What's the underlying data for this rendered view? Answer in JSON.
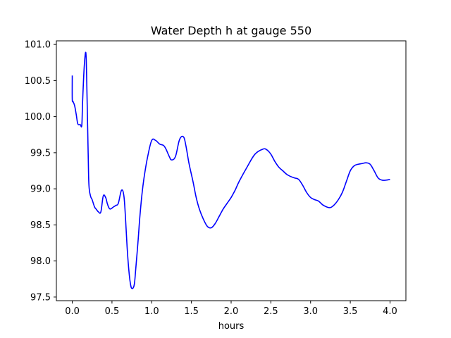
{
  "chart_data": {
    "type": "line",
    "title": "Water Depth h at gauge 550",
    "xlabel": "hours",
    "ylabel": "",
    "xlim": [
      -0.2,
      4.2
    ],
    "ylim": [
      97.45,
      101.05
    ],
    "xticks": [
      0.0,
      0.5,
      1.0,
      1.5,
      2.0,
      2.5,
      3.0,
      3.5,
      4.0
    ],
    "xtick_labels": [
      "0.0",
      "0.5",
      "1.0",
      "1.5",
      "2.0",
      "2.5",
      "3.0",
      "3.5",
      "4.0"
    ],
    "yticks": [
      97.5,
      98.0,
      98.5,
      99.0,
      99.5,
      100.0,
      100.5,
      101.0
    ],
    "ytick_labels": [
      "97.5",
      "98.0",
      "98.5",
      "99.0",
      "99.5",
      "100.0",
      "100.5",
      "101.0"
    ],
    "grid": false,
    "legend": "none",
    "line_color": "#0000ff",
    "series": [
      {
        "x": [
          0.0,
          0.0,
          0.01,
          0.03,
          0.05,
          0.07,
          0.1,
          0.12,
          0.13,
          0.15,
          0.17,
          0.18,
          0.2,
          0.21,
          0.23,
          0.25,
          0.28,
          0.3,
          0.33,
          0.36,
          0.39,
          0.42,
          0.44,
          0.46,
          0.48,
          0.52,
          0.55,
          0.58,
          0.62,
          0.65,
          0.67,
          0.69,
          0.71,
          0.73,
          0.75,
          0.78,
          0.8,
          0.83,
          0.85,
          0.88,
          0.91,
          0.95,
          1.0,
          1.05,
          1.1,
          1.15,
          1.18,
          1.22,
          1.25,
          1.3,
          1.35,
          1.4,
          1.43,
          1.47,
          1.52,
          1.56,
          1.6,
          1.65,
          1.7,
          1.75,
          1.8,
          1.85,
          1.9,
          1.95,
          2.0,
          2.05,
          2.1,
          2.2,
          2.3,
          2.4,
          2.45,
          2.5,
          2.55,
          2.6,
          2.65,
          2.7,
          2.75,
          2.8,
          2.85,
          2.9,
          2.95,
          3.0,
          3.05,
          3.1,
          3.15,
          3.2,
          3.25,
          3.3,
          3.35,
          3.4,
          3.45,
          3.5,
          3.55,
          3.6,
          3.65,
          3.7,
          3.75,
          3.8,
          3.85,
          3.9,
          3.95,
          4.0
        ],
        "y": [
          100.57,
          100.24,
          100.21,
          100.15,
          100.03,
          99.9,
          99.89,
          99.88,
          100.2,
          100.68,
          100.89,
          100.6,
          99.5,
          99.05,
          98.9,
          98.85,
          98.75,
          98.72,
          98.68,
          98.68,
          98.9,
          98.88,
          98.8,
          98.74,
          98.72,
          98.75,
          98.77,
          98.8,
          98.98,
          98.9,
          98.6,
          98.2,
          97.9,
          97.7,
          97.62,
          97.67,
          97.9,
          98.3,
          98.6,
          98.95,
          99.2,
          99.45,
          99.67,
          99.67,
          99.62,
          99.6,
          99.55,
          99.45,
          99.4,
          99.45,
          99.68,
          99.72,
          99.6,
          99.35,
          99.1,
          98.88,
          98.72,
          98.58,
          98.48,
          98.46,
          98.52,
          98.62,
          98.72,
          98.8,
          98.88,
          98.98,
          99.1,
          99.3,
          99.48,
          99.55,
          99.54,
          99.48,
          99.38,
          99.3,
          99.25,
          99.2,
          99.17,
          99.15,
          99.13,
          99.05,
          98.95,
          98.88,
          98.85,
          98.83,
          98.78,
          98.75,
          98.74,
          98.78,
          98.85,
          98.95,
          99.1,
          99.25,
          99.32,
          99.34,
          99.35,
          99.36,
          99.34,
          99.25,
          99.15,
          99.12,
          99.12,
          99.13
        ]
      }
    ]
  }
}
